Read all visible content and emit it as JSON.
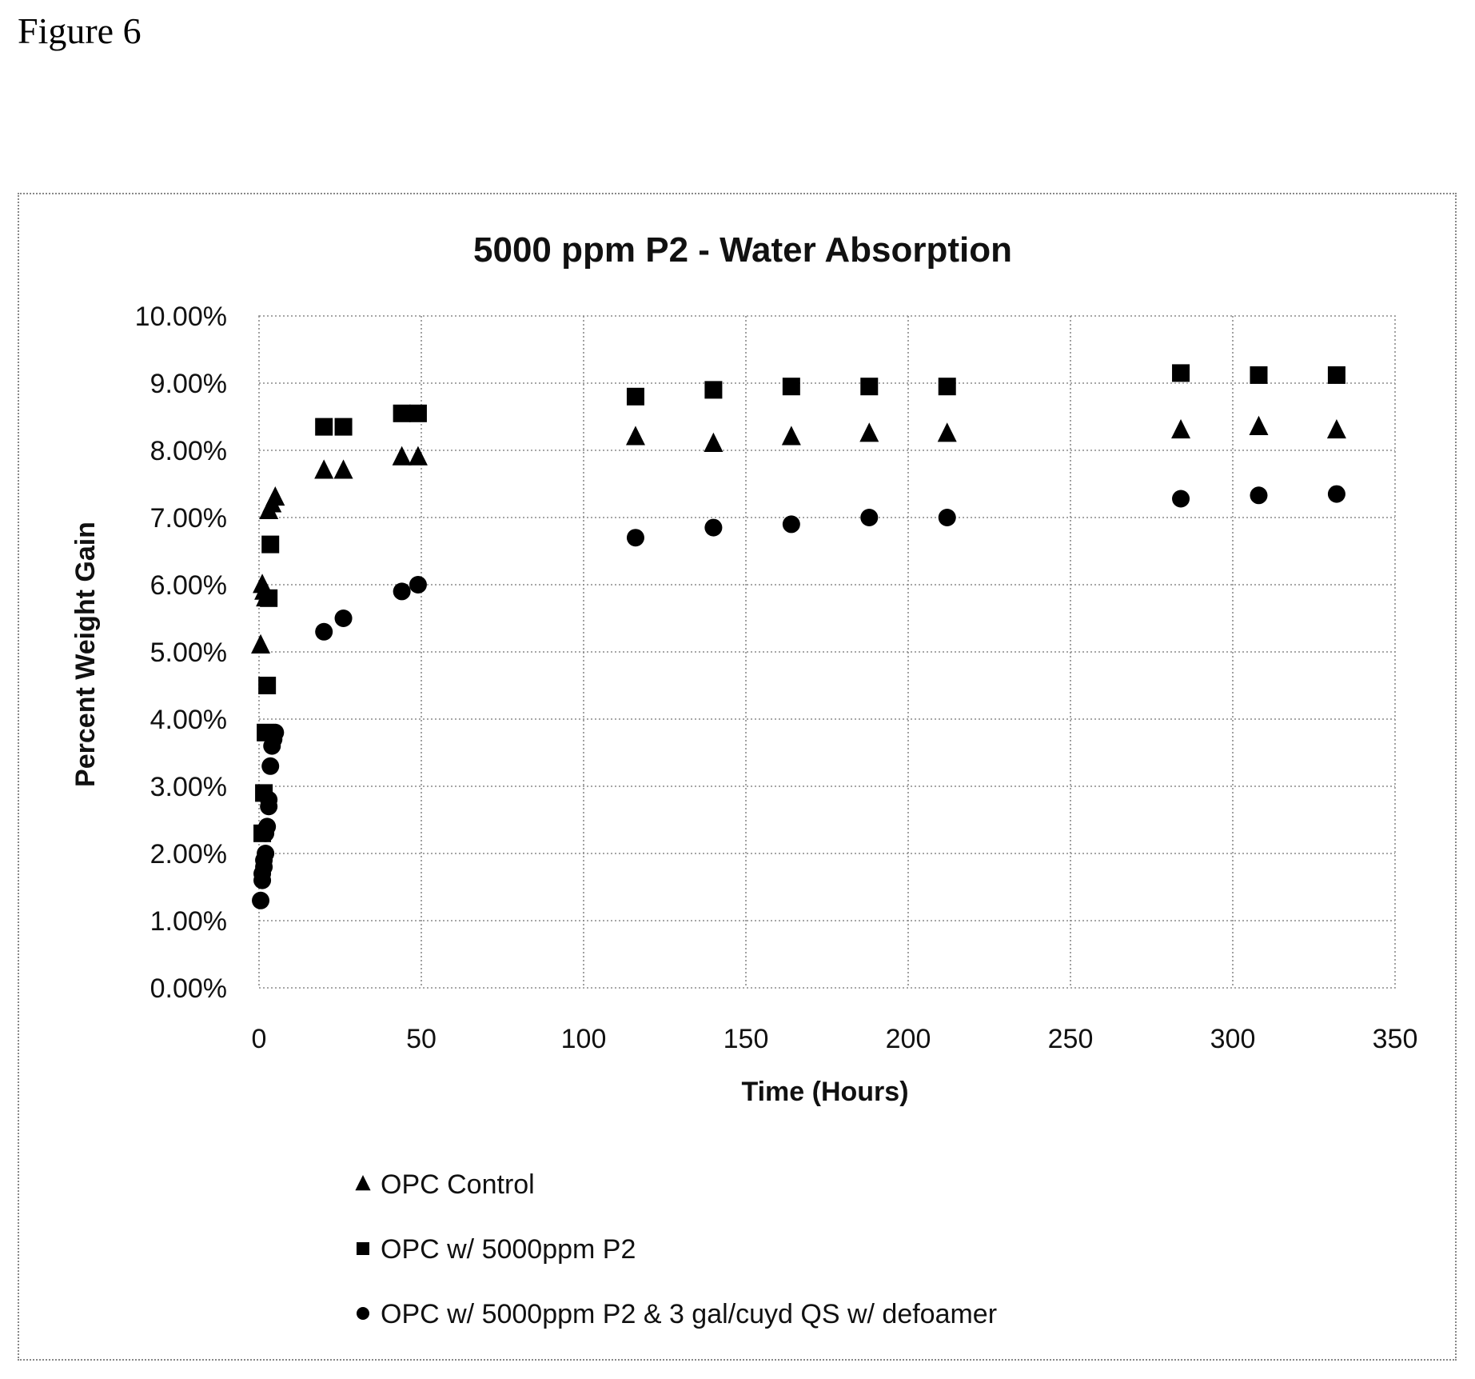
{
  "figure_label": "Figure 6",
  "chart_data": {
    "type": "scatter",
    "title": "5000 ppm P2 - Water Absorption",
    "xlabel": "Time (Hours)",
    "ylabel": "Percent Weight Gain",
    "xlim": [
      0,
      350
    ],
    "ylim": [
      0,
      0.1
    ],
    "x_ticks": [
      "0",
      "50",
      "100",
      "150",
      "200",
      "250",
      "300",
      "350"
    ],
    "y_ticks": [
      "0.00%",
      "1.00%",
      "2.00%",
      "3.00%",
      "4.00%",
      "5.00%",
      "6.00%",
      "7.00%",
      "8.00%",
      "9.00%",
      "10.00%"
    ],
    "grid": true,
    "legend_position": "bottom",
    "series": [
      {
        "name": "OPC Control",
        "marker": "triangle",
        "color": "#000000",
        "points": [
          [
            0.5,
            0.051
          ],
          [
            1,
            0.06
          ],
          [
            1.5,
            0.059
          ],
          [
            2,
            0.058
          ],
          [
            3,
            0.071
          ],
          [
            4,
            0.072
          ],
          [
            5,
            0.073
          ],
          [
            20,
            0.077
          ],
          [
            26,
            0.077
          ],
          [
            44,
            0.079
          ],
          [
            49,
            0.079
          ],
          [
            116,
            0.082
          ],
          [
            140,
            0.081
          ],
          [
            164,
            0.082
          ],
          [
            188,
            0.0825
          ],
          [
            212,
            0.0825
          ],
          [
            284,
            0.083
          ],
          [
            308,
            0.0835
          ],
          [
            332,
            0.083
          ]
        ]
      },
      {
        "name": "OPC w/ 5000ppm P2",
        "marker": "square",
        "color": "#000000",
        "points": [
          [
            1,
            0.023
          ],
          [
            1.5,
            0.029
          ],
          [
            2,
            0.038
          ],
          [
            2.5,
            0.045
          ],
          [
            3,
            0.058
          ],
          [
            3.5,
            0.066
          ],
          [
            20,
            0.0835
          ],
          [
            26,
            0.0835
          ],
          [
            44,
            0.0855
          ],
          [
            49,
            0.0855
          ],
          [
            116,
            0.088
          ],
          [
            140,
            0.089
          ],
          [
            164,
            0.0895
          ],
          [
            188,
            0.0895
          ],
          [
            212,
            0.0895
          ],
          [
            284,
            0.0915
          ],
          [
            308,
            0.0912
          ],
          [
            332,
            0.0912
          ]
        ]
      },
      {
        "name": "OPC w/ 5000ppm P2 & 3 gal/cuyd QS w/ defoamer",
        "marker": "circle",
        "color": "#000000",
        "points": [
          [
            0.5,
            0.013
          ],
          [
            1,
            0.016
          ],
          [
            1,
            0.017
          ],
          [
            1.5,
            0.018
          ],
          [
            1.5,
            0.019
          ],
          [
            2,
            0.02
          ],
          [
            2,
            0.023
          ],
          [
            2.5,
            0.024
          ],
          [
            3,
            0.027
          ],
          [
            3,
            0.028
          ],
          [
            3.5,
            0.033
          ],
          [
            4,
            0.036
          ],
          [
            4.5,
            0.037
          ],
          [
            5,
            0.038
          ],
          [
            20,
            0.053
          ],
          [
            26,
            0.055
          ],
          [
            44,
            0.059
          ],
          [
            49,
            0.06
          ],
          [
            116,
            0.067
          ],
          [
            140,
            0.0685
          ],
          [
            164,
            0.069
          ],
          [
            188,
            0.07
          ],
          [
            212,
            0.07
          ],
          [
            284,
            0.0728
          ],
          [
            308,
            0.0733
          ],
          [
            332,
            0.0735
          ]
        ]
      }
    ]
  }
}
